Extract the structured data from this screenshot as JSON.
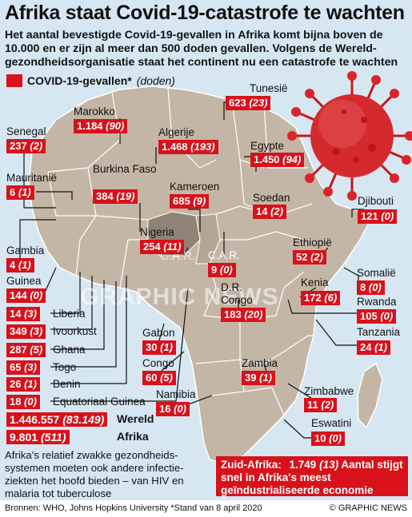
{
  "title": "Afrika staat Covid-19-catastrofe te wachten",
  "subtitle": "Het aantal bevestigde Covid-19-gevallen in Afrika komt bijna boven de 10.000 en er zijn al meer dan 500 doden gevallen. Volgens de Wereld-gezondheidsorganisatie staat het continent nu een catastrofe te wachten",
  "legend": {
    "label": "COVID-19-gevallen*",
    "paren": "(doden)",
    "color": "#d9111a"
  },
  "countries": {
    "tunesie": {
      "name": "Tunesië",
      "cases": "623",
      "deaths": "(23)"
    },
    "marokko": {
      "name": "Marokko",
      "cases": "1.184",
      "deaths": "(90)"
    },
    "algerije": {
      "name": "Algerije",
      "cases": "1.468",
      "deaths": "(193)"
    },
    "senegal": {
      "name": "Senegal",
      "cases": "237",
      "deaths": "(2)"
    },
    "egypte": {
      "name": "Egypte",
      "cases": "1.450",
      "deaths": "(94)"
    },
    "mauritanie": {
      "name": "Mauritanië",
      "cases": "6",
      "deaths": "(1)"
    },
    "burkina": {
      "name": "Burkina Faso",
      "cases": "384",
      "deaths": "(19)"
    },
    "kameroen": {
      "name": "Kameroen",
      "cases": "685",
      "deaths": "(9)"
    },
    "soedan": {
      "name": "Soedan",
      "cases": "14",
      "deaths": "(2)"
    },
    "djibouti": {
      "name": "Djibouti",
      "cases": "121",
      "deaths": "(0)"
    },
    "nigeria": {
      "name": "Nigeria",
      "cases": "254",
      "deaths": "(11)"
    },
    "gambia": {
      "name": "Gambia",
      "cases": "4",
      "deaths": "(1)"
    },
    "ethiopie": {
      "name": "Ethiopië",
      "cases": "52",
      "deaths": "(2)"
    },
    "car": {
      "name": "C.A.R.",
      "cases": "9",
      "deaths": "(0)"
    },
    "guinea": {
      "name": "Guinea",
      "cases": "144",
      "deaths": "(0)"
    },
    "somalie": {
      "name": "Somalië",
      "cases": "8",
      "deaths": "(0)"
    },
    "drcongo": {
      "name": "D.R. Congo",
      "cases": "183",
      "deaths": "(20)"
    },
    "kenia": {
      "name": "Kenia",
      "cases": "172",
      "deaths": "(6)"
    },
    "liberia": {
      "name": "Liberia",
      "cases": "14",
      "deaths": "(3)"
    },
    "rwanda": {
      "name": "Rwanda",
      "cases": "105",
      "deaths": "(0)"
    },
    "ivoorkust": {
      "name": "Ivoorkust",
      "cases": "349",
      "deaths": "(3)"
    },
    "tanzania": {
      "name": "Tanzania",
      "cases": "24",
      "deaths": "(1)"
    },
    "ghana": {
      "name": "Ghana",
      "cases": "287",
      "deaths": "(5)"
    },
    "gabon": {
      "name": "Gabon",
      "cases": "30",
      "deaths": "(1)"
    },
    "togo": {
      "name": "Togo",
      "cases": "65",
      "deaths": "(3)"
    },
    "congo": {
      "name": "Congo",
      "cases": "60",
      "deaths": "(5)"
    },
    "zambia": {
      "name": "Zambia",
      "cases": "39",
      "deaths": "(1)"
    },
    "benin": {
      "name": "Benin",
      "cases": "26",
      "deaths": "(1)"
    },
    "zimbabwe": {
      "name": "Zimbabwe",
      "cases": "11",
      "deaths": "(2)"
    },
    "namibia": {
      "name": "Namibia",
      "cases": "16",
      "deaths": "(0)"
    },
    "eqguinea": {
      "name": "Equatoriaal Guinea",
      "cases": "18",
      "deaths": "(0)"
    },
    "eswatini": {
      "name": "Eswatini",
      "cases": "10",
      "deaths": "(0)"
    }
  },
  "totals": {
    "wereld": {
      "name": "Wereld",
      "cases": "1.446.557",
      "deaths": "(83.149)"
    },
    "afrika": {
      "name": "Afrika",
      "cases": "9.801",
      "deaths": "(511)"
    }
  },
  "note": "Afrika's relatief zwakke gezondheids-systemen moeten ook andere infectie-ziekten het hoofd bieden – van HIV en malaria tot tuberculose",
  "zuid_afrika": {
    "name": "Zuid-Afrika:",
    "cases": "1.749",
    "deaths": "(13)",
    "text": "Aantal stijgt snel in Afrika's meest geïndustrialiseerde economie"
  },
  "footer": {
    "sources": "Bronnen: WHO, Johns Hopkins University *Stand van 8 april 2020",
    "copyright": "© GRAPHIC NEWS"
  },
  "watermark": "GRAPHIC NEWS"
}
